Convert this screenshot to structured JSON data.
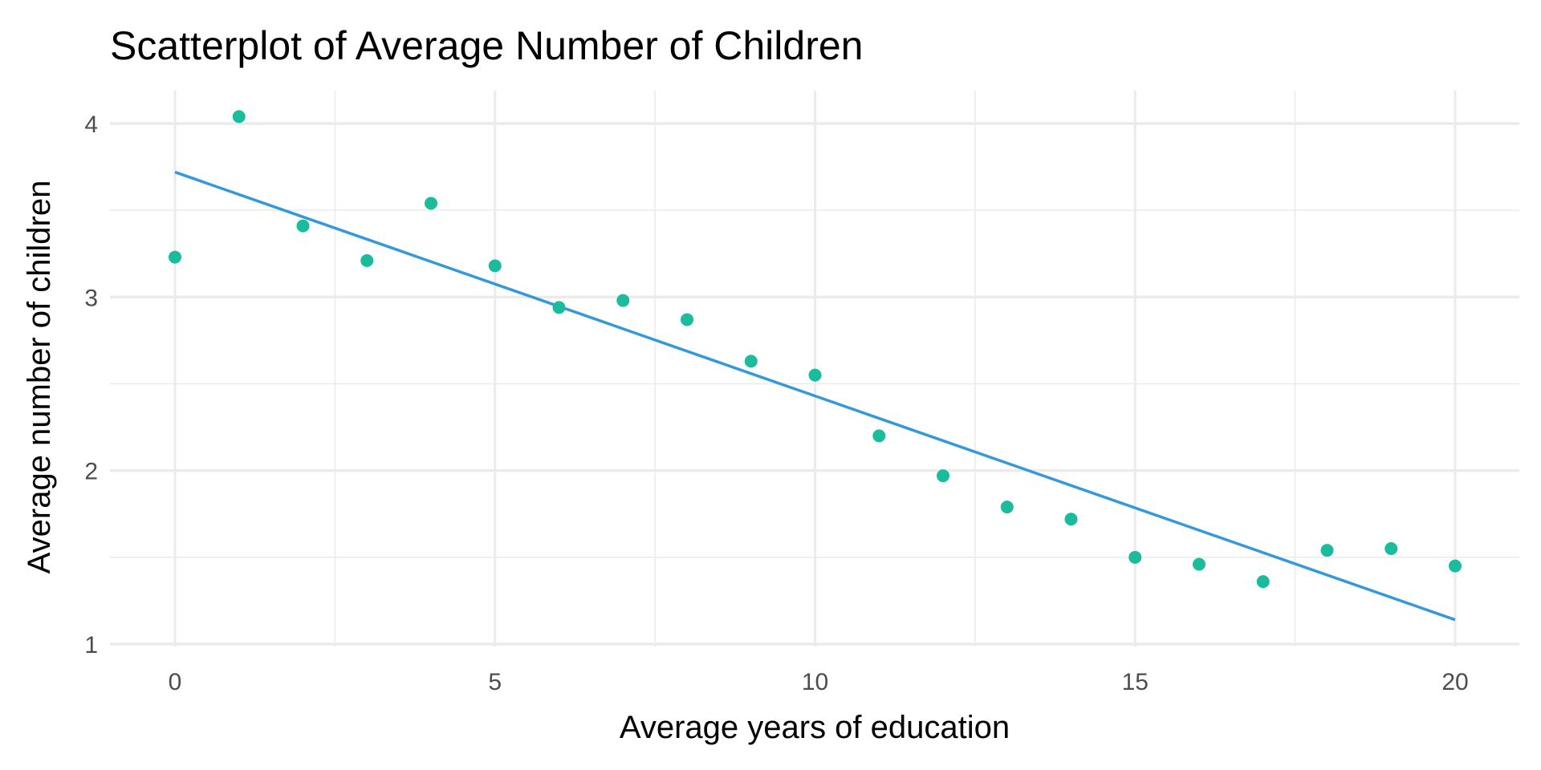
{
  "chart_data": {
    "type": "scatter",
    "title": "Scatterplot of Average Number of Children",
    "xlabel": "Average years of education",
    "ylabel": "Average number of children",
    "xlim": [
      -1,
      21
    ],
    "ylim": [
      1,
      4.2
    ],
    "x_ticks": [
      0,
      5,
      10,
      15,
      20
    ],
    "y_ticks": [
      1,
      2,
      3,
      4
    ],
    "x_tick_labels": [
      "0",
      "5",
      "10",
      "15",
      "20"
    ],
    "y_tick_labels": [
      "1",
      "2",
      "3",
      "4"
    ],
    "grid": true,
    "legend": "none",
    "series": [
      {
        "name": "points",
        "type": "scatter",
        "color": "#1abc9c",
        "x": [
          0,
          1,
          2,
          3,
          4,
          5,
          6,
          7,
          8,
          9,
          10,
          11,
          12,
          13,
          14,
          15,
          16,
          17,
          18,
          19,
          20
        ],
        "y": [
          3.23,
          4.04,
          3.41,
          3.21,
          3.54,
          3.18,
          2.94,
          2.98,
          2.87,
          2.63,
          2.55,
          2.2,
          1.97,
          1.79,
          1.72,
          1.5,
          1.46,
          1.36,
          1.54,
          1.55,
          1.45
        ]
      },
      {
        "name": "linear fit",
        "type": "line",
        "color": "#3498db",
        "x": [
          0,
          20
        ],
        "y": [
          3.72,
          1.14
        ]
      }
    ]
  }
}
